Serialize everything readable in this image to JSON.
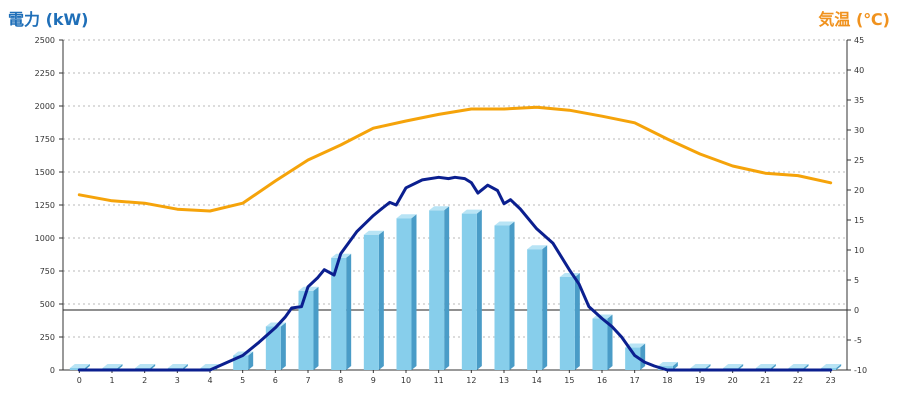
{
  "chart_data": {
    "type": "bar",
    "left_axis_title": "電力 (kW)",
    "right_axis_title": "気温 (℃)",
    "x": [
      "0",
      "1",
      "2",
      "3",
      "4",
      "5",
      "6",
      "7",
      "8",
      "9",
      "10",
      "11",
      "12",
      "13",
      "14",
      "15",
      "16",
      "17",
      "18",
      "19",
      "20",
      "21",
      "22",
      "23"
    ],
    "left_ticks": [
      "0",
      "250",
      "500",
      "750",
      "1000",
      "1250",
      "1500",
      "1750",
      "2000",
      "2250",
      "2500"
    ],
    "right_ticks": [
      "-10",
      "-5",
      "0",
      "5",
      "10",
      "15",
      "20",
      "25",
      "30",
      "35",
      "40",
      "45"
    ],
    "ylim_left": [
      0,
      2500
    ],
    "ylim_right": [
      -10,
      45
    ],
    "grid": true,
    "colors": {
      "bar": "#87ceeb",
      "bar_side": "#4a9cc7",
      "bar_top": "#b8e4f5",
      "power_line": "#0b1f8f",
      "temp_line": "#f5a30a",
      "left_title": "#1f6fb8",
      "right_title": "#f0921e"
    },
    "series": [
      {
        "kind": "bar",
        "values": [
          15,
          15,
          15,
          15,
          15,
          110,
          330,
          600,
          850,
          1025,
          1150,
          1210,
          1185,
          1095,
          915,
          705,
          390,
          170,
          30,
          15,
          15,
          15,
          15,
          15
        ]
      },
      {
        "kind": "line",
        "axis": "left",
        "x": [
          0,
          1,
          2,
          3,
          4,
          4.5,
          5,
          5.5,
          6,
          6.3,
          6.5,
          6.8,
          7,
          7.3,
          7.5,
          7.8,
          8,
          8.5,
          9,
          9.3,
          9.5,
          9.7,
          10,
          10.5,
          11,
          11.3,
          11.5,
          11.8,
          12,
          12.2,
          12.5,
          12.8,
          13,
          13.2,
          13.5,
          14,
          14.5,
          15,
          15.3,
          15.6,
          16,
          16.3,
          16.6,
          17,
          17.3,
          17.6,
          18,
          18.5,
          19,
          20,
          21,
          22,
          23
        ],
        "values": [
          0,
          0,
          0,
          0,
          0,
          55,
          110,
          210,
          320,
          400,
          470,
          480,
          630,
          700,
          760,
          720,
          880,
          1050,
          1170,
          1230,
          1270,
          1250,
          1380,
          1440,
          1460,
          1450,
          1460,
          1450,
          1420,
          1340,
          1400,
          1360,
          1260,
          1290,
          1220,
          1070,
          960,
          760,
          650,
          480,
          390,
          330,
          250,
          110,
          60,
          30,
          0,
          0,
          0,
          0,
          0,
          0,
          0
        ]
      },
      {
        "kind": "line",
        "axis": "right",
        "x": [
          0,
          1,
          2,
          3,
          4,
          5,
          6,
          7,
          8,
          9,
          10,
          11,
          12,
          13,
          14,
          15,
          16,
          17,
          18,
          19,
          20,
          21,
          22,
          23
        ],
        "values": [
          19.2,
          18.2,
          17.8,
          16.8,
          16.5,
          17.8,
          21.5,
          25,
          27.5,
          30.3,
          31.5,
          32.6,
          33.5,
          33.5,
          33.8,
          33.3,
          32.3,
          31.2,
          28.5,
          26,
          24,
          22.8,
          22.4,
          21.2
        ]
      }
    ]
  }
}
